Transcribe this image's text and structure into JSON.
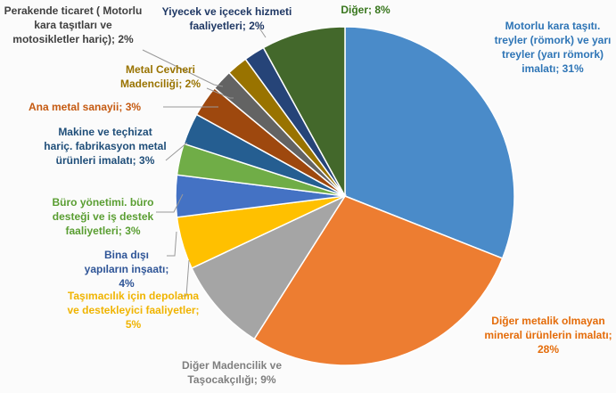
{
  "chart_data": {
    "type": "pie",
    "categories": [
      "Motorlu kara taşıtı. treyler (römork) ve yarı treyler (yarı römork) imalatı;",
      "Diğer metalik olmayan mineral ürünlerin imalatı;",
      "Diğer Madencilik ve Taşocakçılığı;",
      "Taşımacılık için depolama ve destekleyici faaliyetler;",
      "Bina dışı yapıların inşaatı;",
      "Büro yönetimi. büro desteği ve iş destek faaliyetleri;",
      "Makine ve teçhizat hariç. fabrikasyon metal ürünleri imalatı;",
      "Ana metal sanayii;",
      "Metal Cevheri Madenciliği;",
      "Perakende ticaret ( Motorlu kara taşıtları ve motosikletler hariç);",
      "Yiyecek ve içecek hizmeti faaliyetleri;",
      "Diğer;"
    ],
    "values": [
      31,
      28,
      9,
      5,
      4,
      3,
      3,
      3,
      2,
      2,
      2,
      8
    ],
    "value_labels": [
      "31%",
      "28%",
      "9%",
      "5%",
      "4%",
      "3%",
      "3%",
      "3%",
      "2%",
      "2%",
      "2%",
      "8%"
    ],
    "colors": [
      "#4a8bc9",
      "#ed7d31",
      "#a5a5a5",
      "#ffc000",
      "#4472c4",
      "#70ad47",
      "#255e91",
      "#9e480e",
      "#636363",
      "#997300",
      "#264478",
      "#43682b"
    ]
  }
}
